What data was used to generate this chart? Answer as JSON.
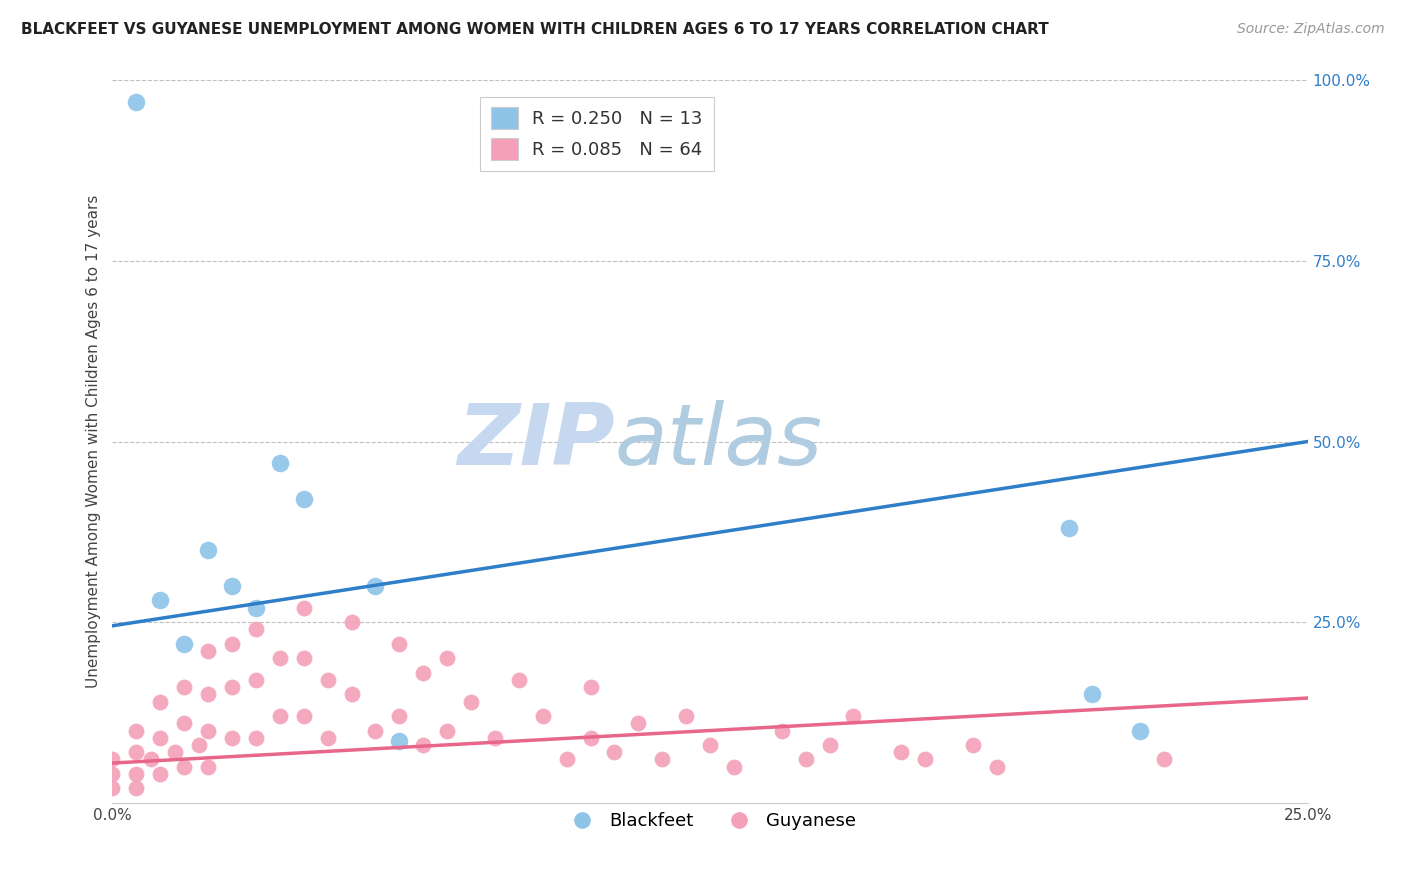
{
  "title": "BLACKFEET VS GUYANESE UNEMPLOYMENT AMONG WOMEN WITH CHILDREN AGES 6 TO 17 YEARS CORRELATION CHART",
  "source": "Source: ZipAtlas.com",
  "ylabel": "Unemployment Among Women with Children Ages 6 to 17 years",
  "xlim": [
    0.0,
    0.25
  ],
  "ylim": [
    0.0,
    1.0
  ],
  "blackfeet_color": "#8ec4e8",
  "guyanese_color": "#f4a0b8",
  "blackfeet_line_color": "#2f7ec8",
  "guyanese_line_color": "#e8668a",
  "watermark_zip_color": "#c5d8f0",
  "watermark_atlas_color": "#b0c8e0",
  "blackfeet_scatter_x": [
    0.005,
    0.01,
    0.015,
    0.02,
    0.025,
    0.03,
    0.035,
    0.04,
    0.055,
    0.06,
    0.2,
    0.205,
    0.215
  ],
  "blackfeet_scatter_y": [
    0.97,
    0.28,
    0.22,
    0.35,
    0.3,
    0.27,
    0.47,
    0.42,
    0.3,
    0.085,
    0.38,
    0.15,
    0.1
  ],
  "guyanese_scatter_x": [
    0.0,
    0.0,
    0.0,
    0.005,
    0.005,
    0.005,
    0.005,
    0.008,
    0.01,
    0.01,
    0.01,
    0.013,
    0.015,
    0.015,
    0.015,
    0.018,
    0.02,
    0.02,
    0.02,
    0.02,
    0.025,
    0.025,
    0.025,
    0.03,
    0.03,
    0.03,
    0.035,
    0.035,
    0.04,
    0.04,
    0.04,
    0.045,
    0.045,
    0.05,
    0.05,
    0.055,
    0.06,
    0.06,
    0.065,
    0.065,
    0.07,
    0.07,
    0.075,
    0.08,
    0.085,
    0.09,
    0.095,
    0.1,
    0.1,
    0.105,
    0.11,
    0.115,
    0.12,
    0.125,
    0.13,
    0.14,
    0.145,
    0.15,
    0.155,
    0.165,
    0.17,
    0.18,
    0.185,
    0.22
  ],
  "guyanese_scatter_y": [
    0.06,
    0.04,
    0.02,
    0.1,
    0.07,
    0.04,
    0.02,
    0.06,
    0.14,
    0.09,
    0.04,
    0.07,
    0.16,
    0.11,
    0.05,
    0.08,
    0.21,
    0.15,
    0.1,
    0.05,
    0.22,
    0.16,
    0.09,
    0.24,
    0.17,
    0.09,
    0.2,
    0.12,
    0.27,
    0.2,
    0.12,
    0.17,
    0.09,
    0.25,
    0.15,
    0.1,
    0.22,
    0.12,
    0.18,
    0.08,
    0.2,
    0.1,
    0.14,
    0.09,
    0.17,
    0.12,
    0.06,
    0.16,
    0.09,
    0.07,
    0.11,
    0.06,
    0.12,
    0.08,
    0.05,
    0.1,
    0.06,
    0.08,
    0.12,
    0.07,
    0.06,
    0.08,
    0.05,
    0.06
  ],
  "blue_line_x0": 0.0,
  "blue_line_y0": 0.245,
  "blue_line_x1": 0.25,
  "blue_line_y1": 0.5,
  "pink_line_x0": 0.0,
  "pink_line_y0": 0.055,
  "pink_line_x1": 0.25,
  "pink_line_y1": 0.145
}
